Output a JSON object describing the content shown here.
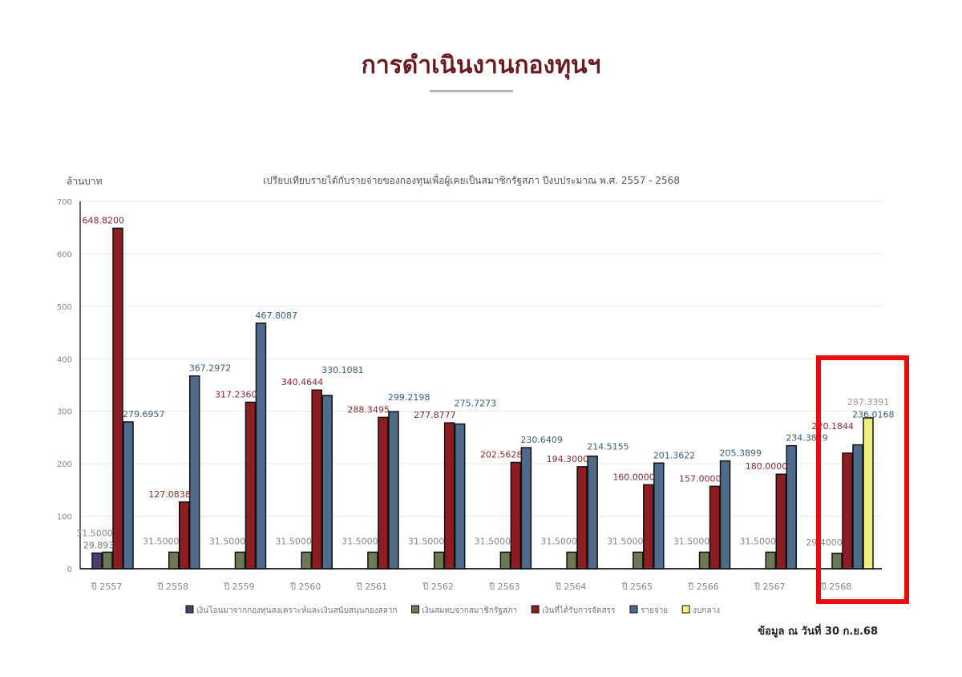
{
  "page": {
    "heading": "การดำเนินงานกองทุนฯ",
    "source_note": "ข้อมูล ณ วันที่ 30 ก.ย.68",
    "highlight_color": "#ee0b0b",
    "highlighted_category": "ปี 2568"
  },
  "chart_data": {
    "type": "bar",
    "title": "เปรียบเทียบรายได้กับรายจ่ายของกองทุนเพื่อผู้เคยเป็นสมาชิกรัฐสภา ปีงบประมาณ พ.ศ. 2557 - 2568",
    "ylabel": "ล้านบาท",
    "xlabel": "",
    "ylim": [
      0,
      700
    ],
    "yticks": [
      0,
      100,
      200,
      300,
      400,
      500,
      600,
      700
    ],
    "grid": true,
    "legend": "bottom",
    "categories": [
      "ปี 2557",
      "ปี 2558",
      "ปี 2559",
      "ปี 2560",
      "ปี 2561",
      "ปี 2562",
      "ปี 2563",
      "ปี 2564",
      "ปี 2565",
      "ปี 2566",
      "ปี 2567",
      "ปี 2568"
    ],
    "series": [
      {
        "name": "เงินโอนมาจากกองทุนสงเคราะห์และเงินสนับสนุนกองสลาก",
        "color": "#4a3f6b",
        "label_color": "#777777",
        "values": [
          29.893,
          null,
          null,
          null,
          null,
          null,
          null,
          null,
          null,
          null,
          null,
          null
        ],
        "labels": [
          "29.893",
          "",
          "",
          "",
          "",
          "",
          "",
          "",
          "",
          "",
          "",
          ""
        ]
      },
      {
        "name": "เงินสมทบจากสมาชิกรัฐสภา",
        "color": "#6b7a55",
        "label_color": "#888888",
        "values": [
          31.5,
          31.5,
          31.5,
          31.5,
          31.5,
          31.5,
          31.5,
          31.5,
          31.5,
          31.5,
          31.5,
          29.4
        ],
        "labels": [
          "31.5000",
          "31.5000",
          "31.5000",
          "31.5000",
          "31.5000",
          "31.5000",
          "31.5000",
          "31.5000",
          "31.5000",
          "31.5000",
          "31.5000",
          "29.4000"
        ]
      },
      {
        "name": "เงินที่ได้รับการจัดสรร",
        "color": "#8e1d22",
        "label_color": "#8a2a2e",
        "values": [
          648.82,
          127.0838,
          317.236,
          340.4644,
          288.3495,
          277.8777,
          202.5628,
          194.3,
          160,
          157,
          180,
          220.1844
        ],
        "labels": [
          "648.8200",
          "127.0838",
          "317.2360",
          "340.4644",
          "288.3495",
          "277.8777",
          "202.5628",
          "194.3000",
          "160.0000",
          "157.0000",
          "180.0000",
          "220.1844"
        ]
      },
      {
        "name": "รายจ่าย",
        "color": "#4f6b8c",
        "label_color": "#3f5f73",
        "values": [
          279.6957,
          367.2972,
          467.8087,
          330.1081,
          299.2198,
          275.7273,
          230.6409,
          214.5155,
          201.3622,
          205.3899,
          234.3829,
          236.0168
        ],
        "labels": [
          "279.6957",
          "367.2972",
          "467.8087",
          "330.1081",
          "299.2198",
          "275.7273",
          "230.6409",
          "214.5155",
          "201.3622",
          "205.3899",
          "234.3829",
          "236.0168"
        ]
      },
      {
        "name": "งบกลาง",
        "color": "#f1ef7a",
        "label_color": "#999999",
        "values": [
          null,
          null,
          null,
          null,
          null,
          null,
          null,
          null,
          null,
          null,
          null,
          287.3391
        ],
        "labels": [
          "",
          "",
          "",
          "",
          "",
          "",
          "",
          "",
          "",
          "",
          "",
          "287.3391"
        ]
      }
    ]
  }
}
